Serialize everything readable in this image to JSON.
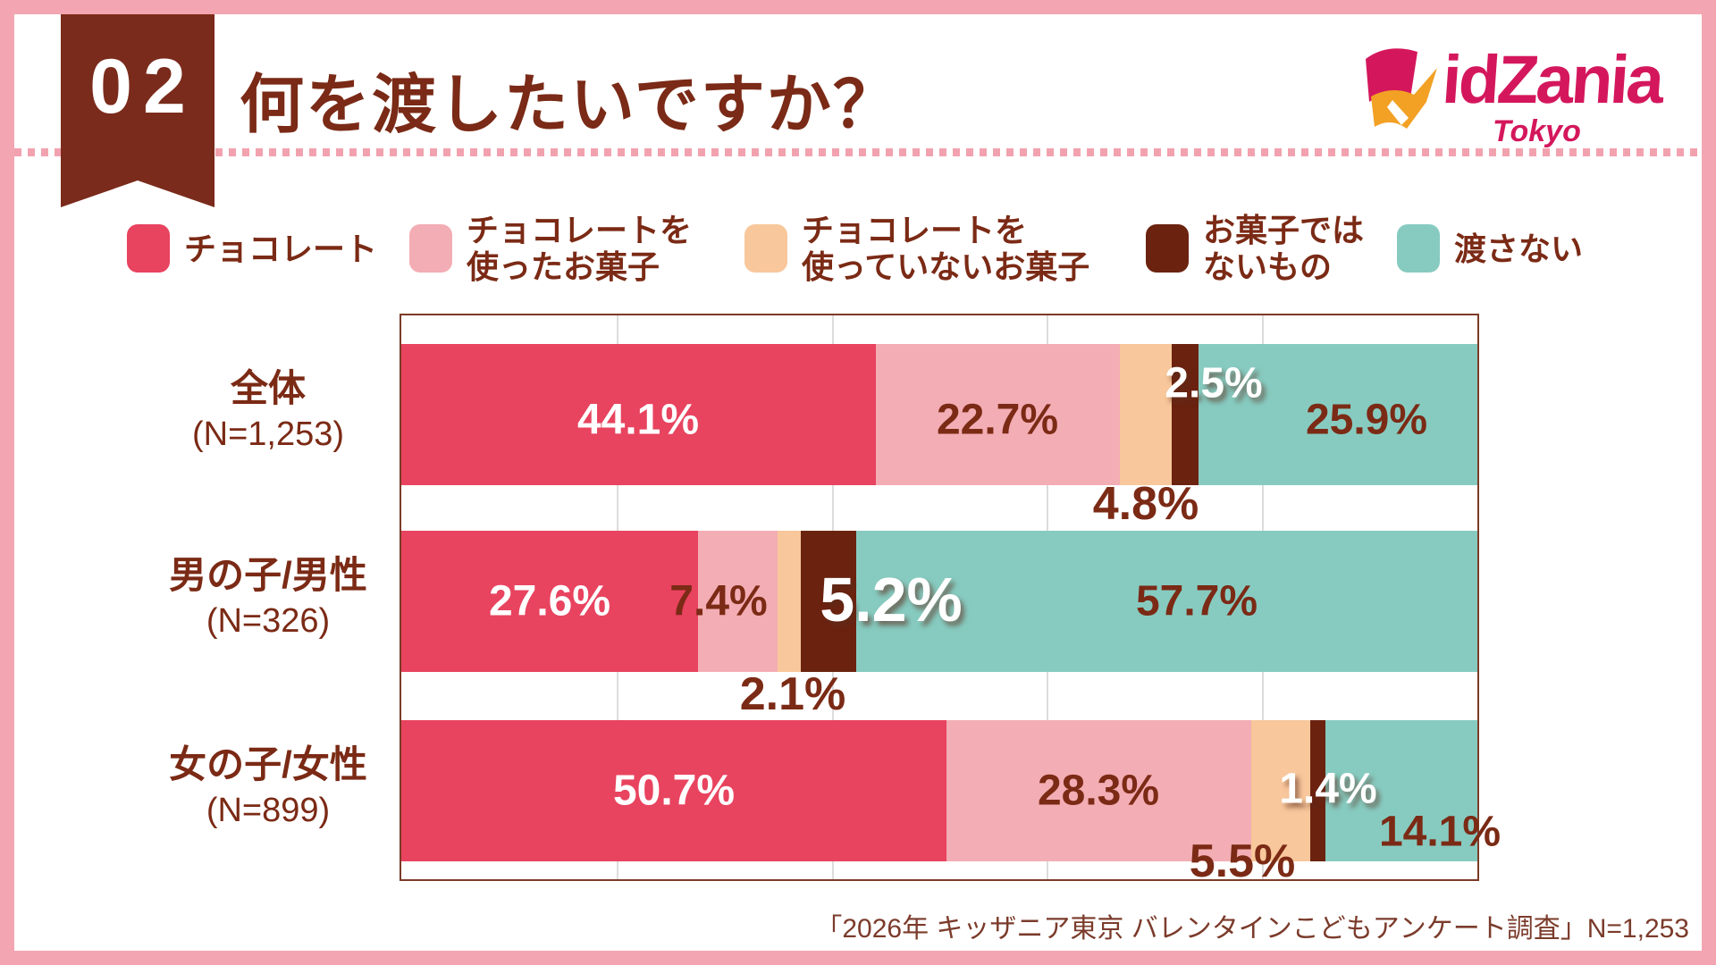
{
  "page": {
    "frame_color": "#F3A6B1",
    "background": "#FFFFFF"
  },
  "header": {
    "badge": "02",
    "title": "何を渡したいですか？",
    "badge_color": "#7A2B1B",
    "title_color": "#7A2A16"
  },
  "logo": {
    "wordmark": "KidZania",
    "city": "Tokyo",
    "crimson": "#D4175C",
    "orange": "#F2A124"
  },
  "legend": {
    "items": [
      {
        "label": "チョコレート",
        "lines": [
          "チョコレート"
        ],
        "color": "#E8435F"
      },
      {
        "label": "チョコレートを使ったお菓子",
        "lines": [
          "チョコレートを",
          "使ったお菓子"
        ],
        "color": "#F3ADB4"
      },
      {
        "label": "チョコレートを使っていないお菓子",
        "lines": [
          "チョコレートを",
          "使っていないお菓子"
        ],
        "color": "#F8C79B"
      },
      {
        "label": "お菓子ではないもの",
        "lines": [
          "お菓子では",
          "ないもの"
        ],
        "color": "#6B2310"
      },
      {
        "label": "渡さない",
        "lines": [
          "渡さない"
        ],
        "color": "#87CBC0"
      }
    ]
  },
  "chart_data": {
    "type": "bar",
    "orientation": "horizontal-stacked",
    "unit": "%",
    "xlim": [
      0,
      100
    ],
    "grid": true,
    "gridlines_pct": [
      20,
      40,
      60,
      80
    ],
    "series": [
      "チョコレート",
      "チョコレートを使ったお菓子",
      "チョコレートを使っていないお菓子",
      "お菓子ではないもの",
      "渡さない"
    ],
    "series_colors": [
      "#E8435F",
      "#F3ADB4",
      "#F8C79B",
      "#6B2310",
      "#87CBC0"
    ],
    "categories": [
      {
        "label": "全体",
        "n_label": "(N=1,253)",
        "values": [
          44.1,
          22.7,
          4.8,
          2.5,
          25.9
        ]
      },
      {
        "label": "男の子/男性",
        "n_label": "(N=326)",
        "values": [
          27.6,
          7.4,
          2.1,
          5.2,
          57.7
        ]
      },
      {
        "label": "女の子/女性",
        "n_label": "(N=899)",
        "values": [
          50.7,
          28.3,
          5.5,
          1.4,
          14.1
        ]
      }
    ]
  },
  "footer": {
    "source": "「2026年 キッザニア東京 バレンタインこどもアンケート調査」N=1,253"
  }
}
